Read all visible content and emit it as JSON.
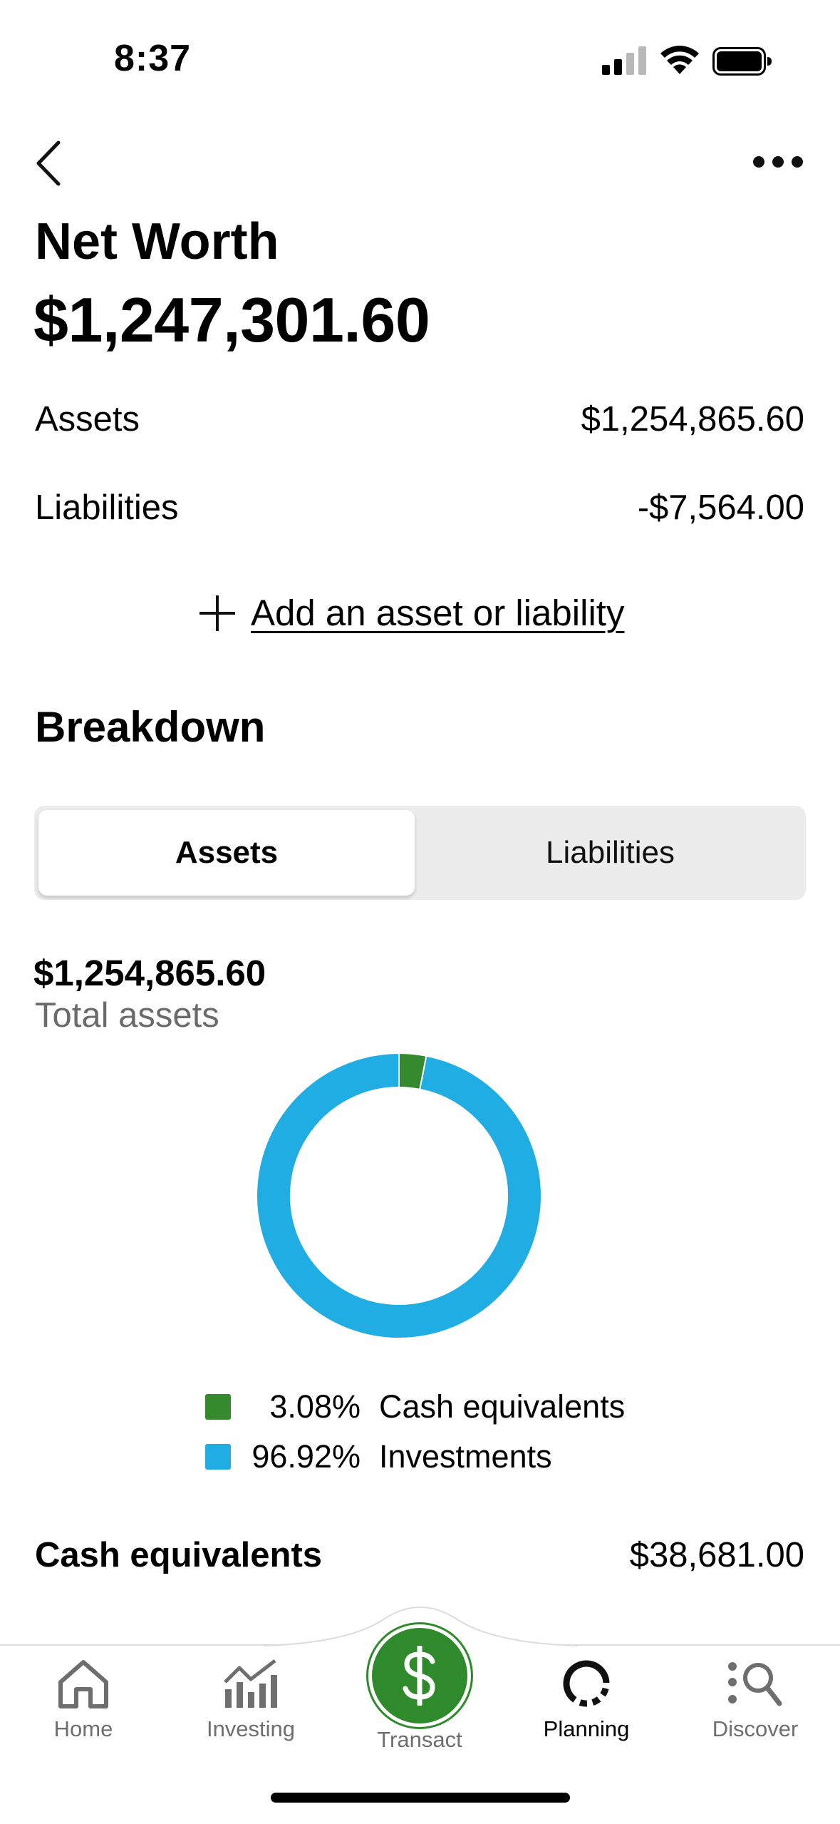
{
  "status_bar": {
    "time": "8:37"
  },
  "header": {
    "title": "Net Worth",
    "net_worth": "$1,247,301.60"
  },
  "summary": [
    {
      "label": "Assets",
      "value": "$1,254,865.60"
    },
    {
      "label": "Liabilities",
      "value": "-$7,564.00"
    }
  ],
  "add_link": "Add an asset or liability",
  "breakdown": {
    "title": "Breakdown",
    "tabs": [
      {
        "label": "Assets",
        "selected": true
      },
      {
        "label": "Liabilities",
        "selected": false
      }
    ],
    "total_value": "$1,254,865.60",
    "total_label": "Total assets"
  },
  "chart_data": {
    "type": "pie",
    "donut": true,
    "categories": [
      "Cash equivalents",
      "Investments"
    ],
    "values": [
      3.08,
      96.92
    ],
    "value_labels": [
      "3.08%",
      "96.92%"
    ],
    "colors": [
      "#348a2c",
      "#1fade3"
    ]
  },
  "cash_section": {
    "title": "Cash equivalents",
    "value": "$38,681.00"
  },
  "tabbar": {
    "home": "Home",
    "investing": "Investing",
    "transact": "Transact",
    "planning": "Planning",
    "discover": "Discover",
    "active": "Planning"
  },
  "colors": {
    "green": "#348a2c",
    "blue": "#1fade3",
    "tab_gray": "#6e6e6e"
  }
}
